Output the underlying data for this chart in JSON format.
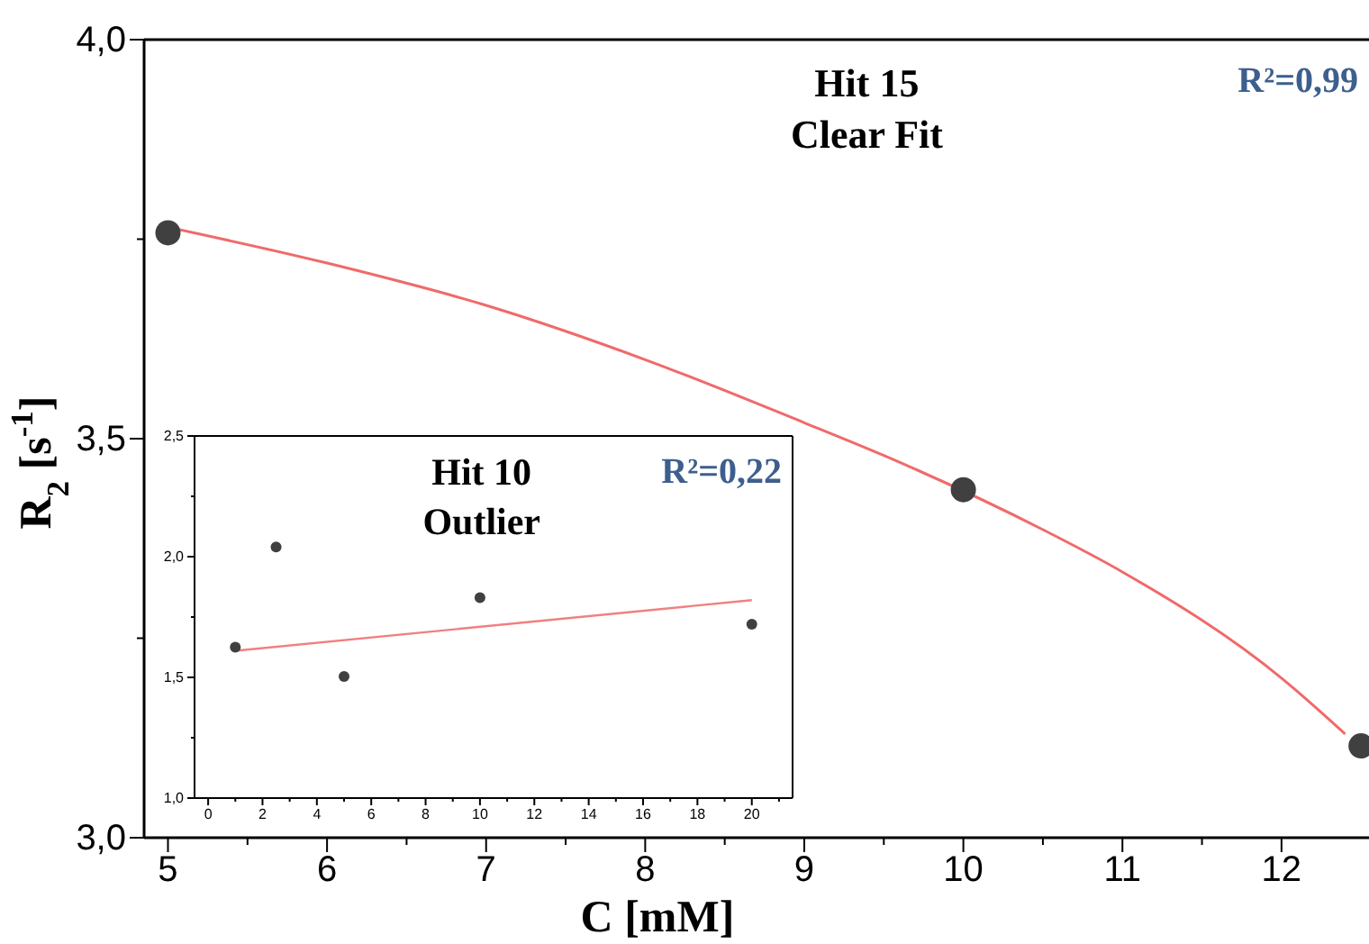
{
  "chart_data": [
    {
      "type": "scatter",
      "xlabel": "C [mM]",
      "ylabel": "R$_{2}$ [s$^{-1}$]",
      "annotations": [
        "Hit 15\nClear Fit",
        "R²=0,99"
      ],
      "xlim": [
        4.85,
        12.55
      ],
      "ylim": [
        3.0,
        4.0
      ],
      "xticks": [
        5,
        {
          "value": 5.5,
          "label": null
        },
        6,
        {
          "value": 6.5,
          "label": null
        },
        7,
        {
          "value": 7.5,
          "label": null
        },
        8,
        {
          "value": 8.5,
          "label": null
        },
        9,
        {
          "value": 9.5,
          "label": null
        },
        10,
        {
          "value": 10.5,
          "label": null
        },
        11,
        {
          "value": 11.5,
          "label": null
        },
        12
      ],
      "yticks": [
        {
          "value": 3.0,
          "label": "3,0"
        },
        {
          "value": 3.25,
          "label": null
        },
        {
          "value": 3.5,
          "label": "3,5"
        },
        {
          "value": 3.75,
          "label": null
        },
        {
          "value": 4.0,
          "label": "4,0"
        }
      ],
      "grid": false,
      "marker": "circle",
      "line_style": "solid",
      "series": [
        {
          "type": "line",
          "color": "#f06a6a",
          "marker": "none",
          "x": [
            5,
            6,
            7,
            8,
            9,
            9.5,
            10.5,
            11,
            12,
            12.4
          ],
          "values": [
            3.765,
            3.72,
            3.667,
            3.599,
            3.52,
            3.479,
            3.386,
            3.333,
            3.2,
            3.13
          ]
        },
        {
          "type": "scatter",
          "color": "#404040",
          "x": [
            5,
            10,
            12.5
          ],
          "values": [
            3.758,
            3.436,
            3.115
          ]
        }
      ]
    },
    {
      "type": "scatter",
      "annotations": [
        "Hit 10\nOutlier",
        "R²=0,22"
      ],
      "xlim": [
        -0.5,
        21.5
      ],
      "ylim": [
        1.0,
        2.5
      ],
      "xticks": [
        0,
        {
          "value": 1,
          "label": null
        },
        2,
        {
          "value": 3,
          "label": null
        },
        4,
        {
          "value": 5,
          "label": null
        },
        6,
        {
          "value": 7,
          "label": null
        },
        8,
        {
          "value": 9,
          "label": null
        },
        10,
        {
          "value": 11,
          "label": null
        },
        12,
        {
          "value": 13,
          "label": null
        },
        14,
        {
          "value": 15,
          "label": null
        },
        16,
        {
          "value": 17,
          "label": null
        },
        18,
        {
          "value": 19,
          "label": null
        },
        20,
        {
          "value": 21,
          "label": null
        }
      ],
      "yticks": [
        {
          "value": 1.0,
          "label": "1,0"
        },
        {
          "value": 1.25,
          "label": null
        },
        {
          "value": 1.5,
          "label": "1,5"
        },
        {
          "value": 1.75,
          "label": null
        },
        {
          "value": 2.0,
          "label": "2,0"
        },
        {
          "value": 2.25,
          "label": null
        },
        {
          "value": 2.5,
          "label": "2,5"
        }
      ],
      "grid": false,
      "marker": "circle",
      "line_style": "solid",
      "series": [
        {
          "type": "line",
          "color": "#f08080",
          "marker": "none",
          "x": [
            1,
            20
          ],
          "values": [
            1.61,
            1.82
          ]
        },
        {
          "type": "scatter",
          "color": "#404040",
          "x": [
            1,
            2.5,
            5,
            10,
            20
          ],
          "values": [
            1.625,
            2.04,
            1.504,
            1.83,
            1.72
          ]
        }
      ]
    }
  ]
}
